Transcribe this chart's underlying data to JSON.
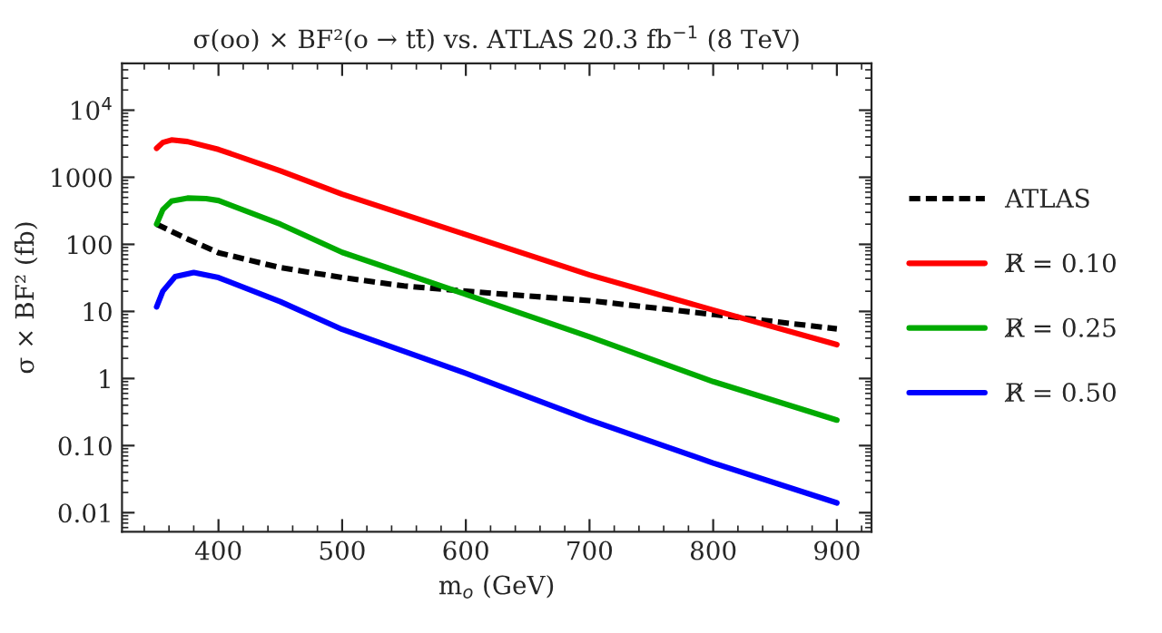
{
  "chart_data": {
    "type": "line",
    "title": "σ(oo) × BF²(o → tt̄) vs. ATLAS 20.3 fb$^{−1}$ (8 TeV)",
    "xlabel": "m$_{o}$ (GeV)",
    "ylabel": "σ × BF² (fb)",
    "log": "y",
    "xlim": [
      322,
      928
    ],
    "ylim": [
      0.0052,
      50000
    ],
    "xticks": [
      400,
      500,
      600,
      700,
      800,
      900
    ],
    "yticks": [
      0.01,
      {
        "value": 0.1,
        "label": "0.10"
      },
      1,
      10,
      100,
      1000,
      {
        "value": 10000,
        "label": "10$^{4}$"
      }
    ],
    "grid": false,
    "legend": "right",
    "marker": "none",
    "series": [
      {
        "name": "ATLAS",
        "color": "#000000",
        "line_style": "dashed",
        "x": [
          350,
          375,
          400,
          450,
          500,
          550,
          600,
          700,
          800,
          900
        ],
        "values": [
          200,
          120,
          75,
          45,
          32,
          24,
          20,
          14.5,
          9,
          5.5
        ]
      },
      {
        "name": "R̸ = 0.10",
        "color": "#ff0000",
        "line_style": "solid",
        "x": [
          350,
          355,
          362,
          375,
          400,
          450,
          500,
          600,
          700,
          800,
          900
        ],
        "values": [
          2700,
          3300,
          3600,
          3400,
          2600,
          1250,
          560,
          140,
          35,
          10.5,
          3.2
        ]
      },
      {
        "name": "R̸ = 0.25",
        "color": "#00aa00",
        "line_style": "solid",
        "x": [
          350,
          355,
          362,
          375,
          390,
          400,
          450,
          500,
          600,
          700,
          800,
          900
        ],
        "values": [
          200,
          330,
          440,
          490,
          480,
          450,
          200,
          76,
          18,
          4.2,
          0.9,
          0.24
        ]
      },
      {
        "name": "R̸ = 0.50",
        "color": "#0000ff",
        "line_style": "solid",
        "x": [
          350,
          355,
          365,
          380,
          400,
          450,
          500,
          600,
          700,
          800,
          900
        ],
        "values": [
          11.7,
          20,
          33,
          38,
          32,
          14,
          5.4,
          1.2,
          0.24,
          0.055,
          0.014
        ]
      }
    ]
  }
}
